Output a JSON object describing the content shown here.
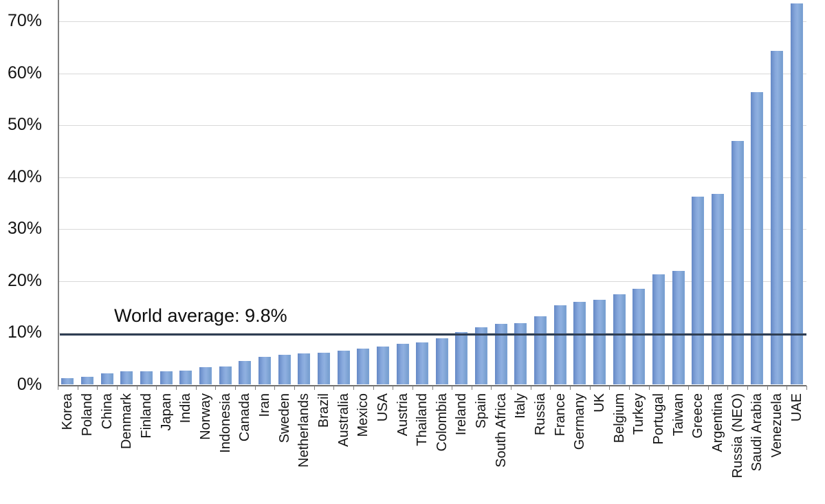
{
  "chart_data": {
    "type": "bar",
    "title": "",
    "xlabel": "",
    "ylabel": "",
    "categories": [
      "Korea",
      "Poland",
      "China",
      "Denmark",
      "Finland",
      "Japan",
      "India",
      "Norway",
      "Indonesia",
      "Canada",
      "Iran",
      "Sweden",
      "Netherlands",
      "Brazil",
      "Australia",
      "Mexico",
      "USA",
      "Austria",
      "Thailand",
      "Colombia",
      "Ireland",
      "Spain",
      "South Africa",
      "Italy",
      "Russia",
      "France",
      "Germany",
      "UK",
      "Belgium",
      "Turkey",
      "Portugal",
      "Taiwan",
      "Greece",
      "Argentina",
      "Russia (NEO)",
      "Saudi Arabia",
      "Venezuela",
      "UAE"
    ],
    "values": [
      1.2,
      1.5,
      2.2,
      2.6,
      2.6,
      2.6,
      2.7,
      3.4,
      3.5,
      4.6,
      5.4,
      5.8,
      6.0,
      6.2,
      6.6,
      7.0,
      7.3,
      7.9,
      8.1,
      9.0,
      10.1,
      11.1,
      11.7,
      11.9,
      13.2,
      15.3,
      16.0,
      16.3,
      17.4,
      18.5,
      21.2,
      21.9,
      36.2,
      36.7,
      47.0,
      56.4,
      64.3,
      73.5
    ],
    "annotation": "World average: 9.8%",
    "world_average": 9.8,
    "y_tick_labels": [
      "0%",
      "10%",
      "20%",
      "30%",
      "40%",
      "50%",
      "60%",
      "70%"
    ],
    "y_tick_values": [
      0,
      10,
      20,
      30,
      40,
      50,
      60,
      70
    ],
    "ylim": [
      0,
      74.1
    ],
    "grid": true,
    "legend": "none",
    "colors": {
      "bar": "#7da2d8",
      "bar_edge": "#6589c6",
      "grid": "#d9d9d9",
      "axis": "#7f7f7f",
      "average_line": "#2f3e53",
      "text": "#141414"
    }
  }
}
